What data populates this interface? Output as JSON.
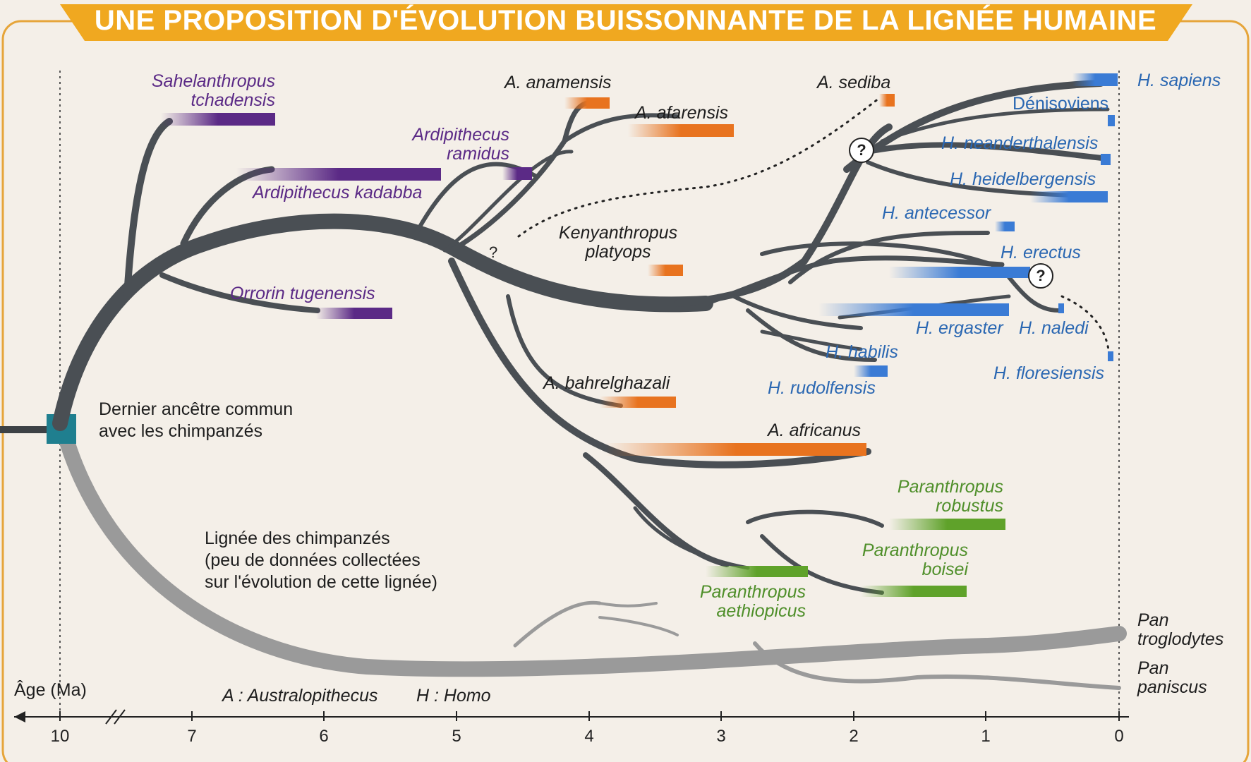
{
  "title": "UNE PROPOSITION D'ÉVOLUTION BUISSONNANTE DE LA LIGNÉE HUMAINE",
  "colors": {
    "banner": "#f0a820",
    "trunk": "#4a4f54",
    "chimp_branch": "#9a9a9a",
    "purple": "#5b2a86",
    "orange": "#e8731f",
    "blue": "#3a7bd5",
    "green": "#5fa22a",
    "ancestor_box": "#1f7f8f"
  },
  "species": {
    "sahelanthropus_line1": "Sahelanthropus",
    "sahelanthropus_line2": "tchadensis",
    "kadabba": "Ardipithecus kadabba",
    "orrorin": "Orrorin tugenensis",
    "ramidus_line1": "Ardipithecus",
    "ramidus_line2": "ramidus",
    "anamensis": "A. anamensis",
    "afarensis": "A. afarensis",
    "kenyanthropus_line1": "Kenyanthropus",
    "kenyanthropus_line2": "platyops",
    "bahrelghazali": "A. bahrelghazali",
    "africanus": "A. africanus",
    "sediba": "A. sediba",
    "sapiens": "H. sapiens",
    "denisoviens": "Dénisoviens",
    "neanderthalensis": "H. neanderthalensis",
    "heidelbergensis": "H. heidelbergensis",
    "antecessor": "H. antecessor",
    "erectus": "H. erectus",
    "ergaster": "H. ergaster",
    "naledi": "H. naledi",
    "habilis": "H. habilis",
    "floresiensis": "H. floresiensis",
    "rudolfensis": "H. rudolfensis",
    "robustus_line1": "Paranthropus",
    "robustus_line2": "robustus",
    "boisei_line1": "Paranthropus",
    "boisei_line2": "boisei",
    "aethiopicus_line1": "Paranthropus",
    "aethiopicus_line2": "aethiopicus",
    "troglodytes_line1": "Pan",
    "troglodytes_line2": "troglodytes",
    "paniscus_line1": "Pan",
    "paniscus_line2": "paniscus"
  },
  "ancestor_line1": "Dernier ancêtre commun",
  "ancestor_line2": "avec les chimpanzés",
  "chimp_lineage": {
    "line1": "Lignée des chimpanzés",
    "line2": "(peu de données collectées",
    "line3": "sur l'évolution de cette lignée)"
  },
  "unknown_mark": "?",
  "axis": {
    "label": "Âge (Ma)",
    "ticks": [
      "10",
      "7",
      "6",
      "5",
      "4",
      "3",
      "2",
      "1",
      "0"
    ]
  },
  "legend": {
    "a": "A : Australopithecus",
    "h": "H : Homo"
  }
}
